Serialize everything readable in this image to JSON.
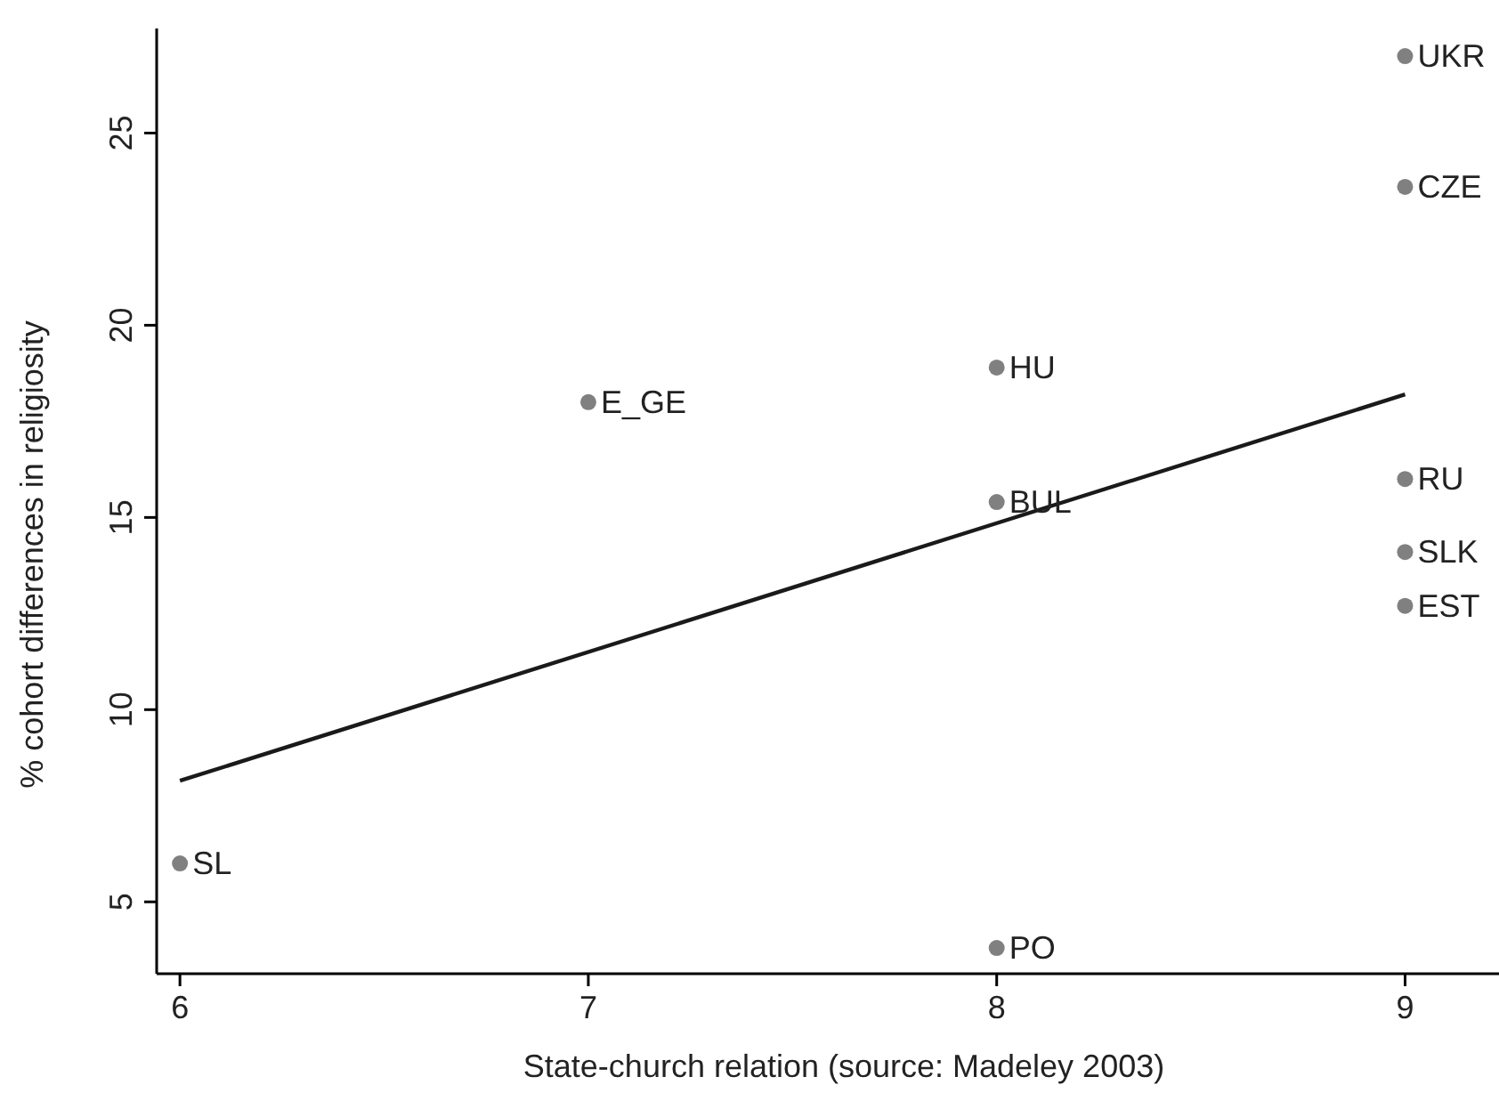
{
  "chart_data": {
    "type": "scatter",
    "xlabel": "State-church relation (source: Madeley 2003)",
    "ylabel": "% cohort differences in religiosity",
    "xlim": [
      5.943,
      9.23
    ],
    "xticks": [
      6,
      7,
      8,
      9
    ],
    "ylim": [
      3.13,
      27.72
    ],
    "yticks": [
      5,
      10,
      15,
      20,
      25
    ],
    "grid": false,
    "series": [
      {
        "marker": "circle",
        "color": "#808080",
        "x": [
          9,
          9,
          8,
          7,
          8,
          9,
          9,
          9,
          6,
          8
        ],
        "values": [
          27.0,
          23.6,
          18.9,
          18.0,
          15.4,
          16.0,
          14.1,
          12.7,
          6.0,
          3.8
        ]
      },
      {
        "type": "line",
        "color": "#1a1a1a",
        "x": [
          6,
          9
        ],
        "values": [
          8.15,
          18.2
        ],
        "line_style": "solid"
      }
    ],
    "annotations": [
      {
        "text": "UKR",
        "x": 9,
        "y": 27.0
      },
      {
        "text": "CZE",
        "x": 9,
        "y": 23.6
      },
      {
        "text": "HU",
        "x": 8,
        "y": 18.9
      },
      {
        "text": "E_GE",
        "x": 7,
        "y": 18.0
      },
      {
        "text": "BUL",
        "x": 8,
        "y": 15.4
      },
      {
        "text": "RU",
        "x": 9,
        "y": 16.0
      },
      {
        "text": "SLK",
        "x": 9,
        "y": 14.1
      },
      {
        "text": "EST",
        "x": 9,
        "y": 12.7
      },
      {
        "text": "SL",
        "x": 6,
        "y": 6.0
      },
      {
        "text": "PO",
        "x": 8,
        "y": 3.8
      }
    ]
  }
}
